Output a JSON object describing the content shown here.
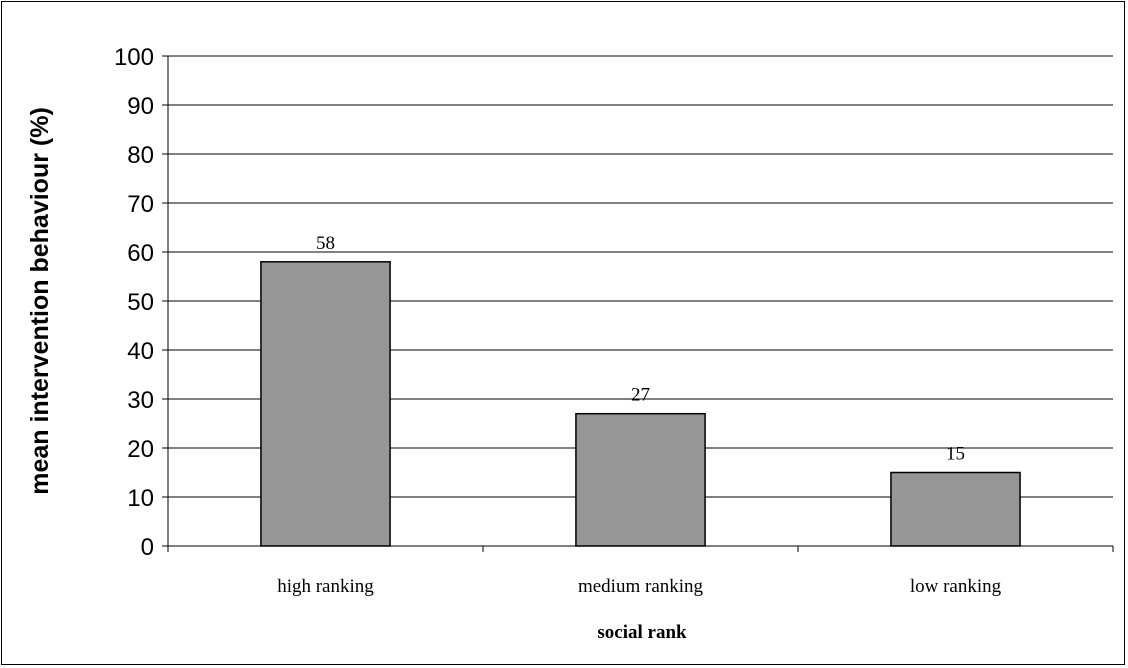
{
  "chart_data": {
    "type": "bar",
    "categories": [
      "high ranking",
      "medium ranking",
      "low ranking"
    ],
    "values": [
      58,
      27,
      15
    ],
    "data_labels": [
      "58",
      "27",
      "15"
    ],
    "title": "",
    "xlabel": "social rank",
    "ylabel": "mean intervention behaviour (%)",
    "ylim": [
      0,
      100
    ],
    "yticks": [
      "0",
      "10",
      "20",
      "30",
      "40",
      "50",
      "60",
      "70",
      "80",
      "90",
      "100"
    ],
    "grid": true,
    "legend": "none",
    "bar_color": "#969696",
    "bar_edge_color": "#000000"
  }
}
